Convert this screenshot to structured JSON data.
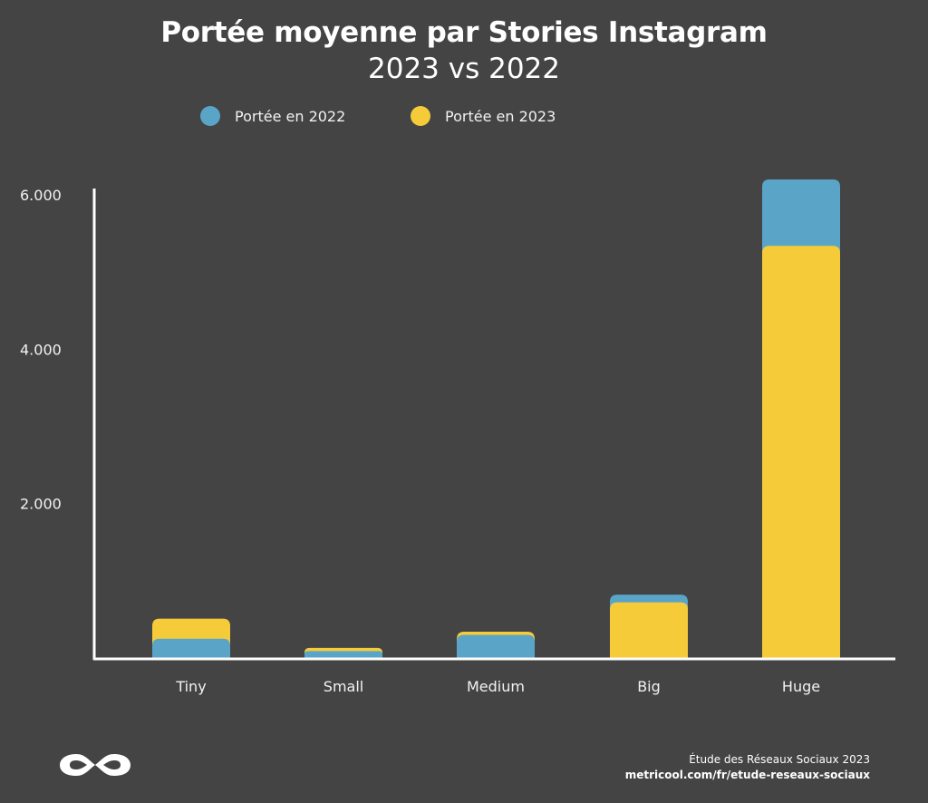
{
  "header": {
    "title": "Portée moyenne par Stories Instagram",
    "subtitle": "2023 vs 2022"
  },
  "legend": [
    {
      "label": "Portée en 2022",
      "color": "#5aa4c8"
    },
    {
      "label": "Portée en 2023",
      "color": "#f5cb3a"
    }
  ],
  "footer": {
    "line1": "Étude des Réseaux Sociaux 2023",
    "line2": "metricool.com/fr/etude-reseaux-sociaux"
  },
  "logo": {
    "icon": "infinity-icon",
    "color": "#ffffff"
  },
  "colors": {
    "background": "#444444",
    "axis": "#ffffff",
    "text": "#f2f2f2"
  },
  "chart_data": {
    "type": "bar",
    "categories": [
      "Tiny",
      "Small",
      "Medium",
      "Big",
      "Huge"
    ],
    "series": [
      {
        "name": "Portée en 2022",
        "values": [
          250,
          90,
          300,
          820,
          6200
        ],
        "color": "#5aa4c8"
      },
      {
        "name": "Portée en 2023",
        "values": [
          510,
          130,
          340,
          720,
          5340
        ],
        "color": "#f5cb3a"
      }
    ],
    "title": "Portée moyenne par Stories Instagram",
    "subtitle": "2023 vs 2022",
    "xlabel": "",
    "ylabel": "",
    "yticks": [
      {
        "value": 2000,
        "label": "2.000"
      },
      {
        "value": 4000,
        "label": "4.000"
      },
      {
        "value": 6000,
        "label": "6.000"
      }
    ],
    "ylim": [
      0,
      6000
    ],
    "grid": false,
    "legend_position": "top-center",
    "bars_overlapped": true
  }
}
